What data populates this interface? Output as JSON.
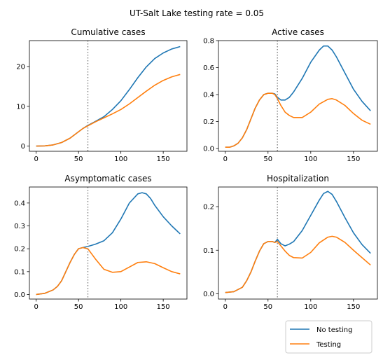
{
  "figure": {
    "title": "UT-Salt Lake testing rate = 0.05"
  },
  "legend": {
    "placement": "bottom-right",
    "entries": [
      {
        "name": "No testing",
        "color": "#1f77b4"
      },
      {
        "name": "Testing",
        "color": "#ff7f0e"
      }
    ]
  },
  "colors": {
    "no_testing": "#1f77b4",
    "testing": "#ff7f0e",
    "vline": "#808080"
  },
  "chart_data": [
    {
      "type": "line",
      "title": "Cumulative cases",
      "xlim": [
        -8,
        178
      ],
      "ylim": [
        -1.3,
        26.5
      ],
      "xticks": [
        0,
        50,
        100,
        150
      ],
      "yticks": [
        0,
        10,
        20
      ],
      "vline_x": 61,
      "series": [
        {
          "name": "No testing",
          "color": "#1f77b4",
          "x": [
            0,
            10,
            20,
            30,
            40,
            50,
            55,
            61,
            70,
            80,
            90,
            100,
            110,
            120,
            130,
            140,
            150,
            160,
            170
          ],
          "y": [
            0,
            0.05,
            0.3,
            0.9,
            2.0,
            3.6,
            4.4,
            5.2,
            6.2,
            7.4,
            9.2,
            11.4,
            14.2,
            17.2,
            19.9,
            22.0,
            23.4,
            24.4,
            25.0
          ]
        },
        {
          "name": "Testing",
          "color": "#ff7f0e",
          "x": [
            0,
            10,
            20,
            30,
            40,
            50,
            55,
            61,
            70,
            80,
            90,
            100,
            110,
            120,
            130,
            140,
            150,
            160,
            170
          ],
          "y": [
            0,
            0.05,
            0.3,
            0.9,
            2.0,
            3.6,
            4.4,
            5.1,
            6.1,
            7.1,
            8.1,
            9.2,
            10.6,
            12.2,
            13.8,
            15.3,
            16.5,
            17.4,
            18.0
          ]
        }
      ]
    },
    {
      "type": "line",
      "title": "Active cases",
      "xlim": [
        -8,
        178
      ],
      "ylim": [
        -0.02,
        0.8
      ],
      "xticks": [
        0,
        50,
        100,
        150
      ],
      "yticks": [
        0.0,
        0.2,
        0.4,
        0.6,
        0.8
      ],
      "vline_x": 61,
      "series": [
        {
          "name": "No testing",
          "color": "#1f77b4",
          "x": [
            0,
            5,
            10,
            15,
            20,
            25,
            30,
            35,
            40,
            45,
            50,
            55,
            58,
            61,
            65,
            70,
            75,
            80,
            90,
            100,
            110,
            115,
            120,
            125,
            130,
            140,
            150,
            160,
            170
          ],
          "y": [
            0.01,
            0.01,
            0.02,
            0.04,
            0.08,
            0.14,
            0.22,
            0.3,
            0.36,
            0.4,
            0.41,
            0.41,
            0.405,
            0.38,
            0.36,
            0.36,
            0.38,
            0.42,
            0.52,
            0.64,
            0.73,
            0.76,
            0.76,
            0.73,
            0.68,
            0.56,
            0.44,
            0.35,
            0.28
          ]
        },
        {
          "name": "Testing",
          "color": "#ff7f0e",
          "x": [
            0,
            5,
            10,
            15,
            20,
            25,
            30,
            35,
            40,
            45,
            50,
            55,
            58,
            61,
            65,
            70,
            75,
            80,
            90,
            100,
            110,
            120,
            125,
            130,
            140,
            150,
            160,
            170
          ],
          "y": [
            0.01,
            0.01,
            0.02,
            0.04,
            0.08,
            0.14,
            0.22,
            0.3,
            0.36,
            0.4,
            0.41,
            0.41,
            0.4,
            0.37,
            0.32,
            0.27,
            0.245,
            0.23,
            0.23,
            0.27,
            0.33,
            0.365,
            0.37,
            0.36,
            0.32,
            0.26,
            0.21,
            0.18
          ]
        }
      ]
    },
    {
      "type": "line",
      "title": "Asymptomatic cases",
      "xlim": [
        -8,
        178
      ],
      "ylim": [
        -0.02,
        0.47
      ],
      "xticks": [
        0,
        50,
        100,
        150
      ],
      "yticks": [
        0.0,
        0.1,
        0.2,
        0.3,
        0.4
      ],
      "vline_x": 61,
      "series": [
        {
          "name": "No testing",
          "color": "#1f77b4",
          "x": [
            0,
            10,
            20,
            25,
            30,
            35,
            40,
            45,
            50,
            55,
            61,
            70,
            80,
            90,
            100,
            110,
            120,
            125,
            130,
            135,
            140,
            150,
            160,
            170
          ],
          "y": [
            0,
            0.005,
            0.02,
            0.035,
            0.06,
            0.1,
            0.14,
            0.175,
            0.2,
            0.205,
            0.21,
            0.22,
            0.235,
            0.27,
            0.33,
            0.4,
            0.44,
            0.445,
            0.44,
            0.42,
            0.39,
            0.34,
            0.3,
            0.265
          ]
        },
        {
          "name": "Testing",
          "color": "#ff7f0e",
          "x": [
            0,
            10,
            20,
            25,
            30,
            35,
            40,
            45,
            50,
            55,
            61,
            65,
            70,
            80,
            90,
            100,
            110,
            120,
            130,
            140,
            150,
            160,
            170
          ],
          "y": [
            0,
            0.005,
            0.02,
            0.035,
            0.06,
            0.1,
            0.14,
            0.175,
            0.2,
            0.205,
            0.2,
            0.18,
            0.155,
            0.11,
            0.097,
            0.1,
            0.12,
            0.14,
            0.143,
            0.135,
            0.117,
            0.1,
            0.09
          ]
        }
      ]
    },
    {
      "type": "line",
      "title": "Hospitalization",
      "xlim": [
        -8,
        178
      ],
      "ylim": [
        -0.012,
        0.245
      ],
      "xticks": [
        0,
        50,
        100,
        150
      ],
      "yticks": [
        0.0,
        0.1,
        0.2
      ],
      "vline_x": 61,
      "series": [
        {
          "name": "No testing",
          "color": "#1f77b4",
          "x": [
            0,
            10,
            20,
            25,
            30,
            35,
            40,
            45,
            50,
            55,
            58,
            61,
            65,
            70,
            75,
            80,
            90,
            100,
            110,
            115,
            120,
            125,
            130,
            140,
            150,
            160,
            170
          ],
          "y": [
            0.003,
            0.005,
            0.015,
            0.03,
            0.05,
            0.075,
            0.098,
            0.115,
            0.12,
            0.12,
            0.118,
            0.125,
            0.115,
            0.11,
            0.114,
            0.12,
            0.145,
            0.18,
            0.215,
            0.23,
            0.235,
            0.228,
            0.212,
            0.175,
            0.14,
            0.113,
            0.093
          ]
        },
        {
          "name": "Testing",
          "color": "#ff7f0e",
          "x": [
            0,
            10,
            20,
            25,
            30,
            35,
            40,
            45,
            50,
            55,
            58,
            61,
            65,
            70,
            75,
            80,
            90,
            100,
            110,
            120,
            125,
            130,
            140,
            150,
            160,
            170
          ],
          "y": [
            0.003,
            0.005,
            0.015,
            0.03,
            0.05,
            0.075,
            0.098,
            0.115,
            0.12,
            0.12,
            0.118,
            0.12,
            0.11,
            0.098,
            0.088,
            0.083,
            0.082,
            0.095,
            0.117,
            0.13,
            0.132,
            0.13,
            0.118,
            0.1,
            0.083,
            0.066
          ]
        }
      ]
    }
  ]
}
